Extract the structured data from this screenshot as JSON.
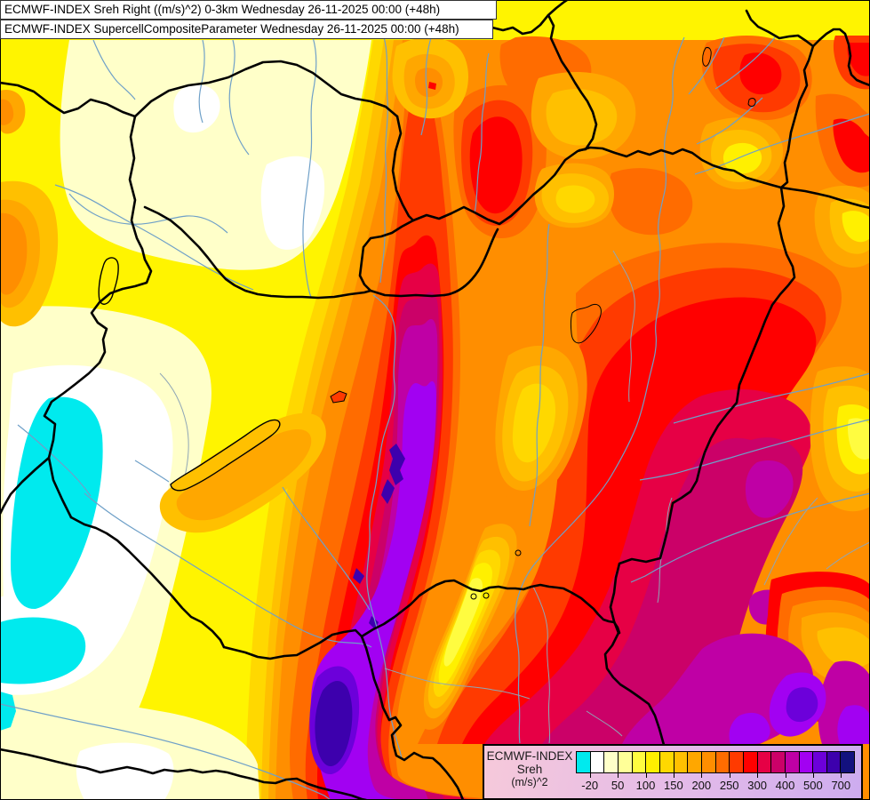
{
  "header": {
    "line1": "ECMWF-INDEX Sreh Right ((m/s)^2) 0-3km Wednesday 26-11-2025 00:00 (+48h)",
    "line2": "ECMWF-INDEX SupercellCompositeParameter Wednesday 26-11-2025 00:00 (+48h)"
  },
  "legend": {
    "title_line1": "ECMWF-INDEX",
    "title_line2": "Sreh",
    "title_line3": "(m/s)^2",
    "tick_labels": [
      "-20",
      "50",
      "100",
      "150",
      "200",
      "250",
      "300",
      "400",
      "500",
      "700"
    ],
    "colors": [
      "#00EAEE",
      "#FFFFFF",
      "#FFFFC9",
      "#FFFF98",
      "#FFFC40",
      "#FFF000",
      "#FFD800",
      "#FFC000",
      "#FFA700",
      "#FF8E00",
      "#FF6C00",
      "#FF3A00",
      "#FF0000",
      "#E60045",
      "#CB0168",
      "#BF00A5",
      "#A201F2",
      "#6C00DA",
      "#3D00AD",
      "#13117E"
    ]
  },
  "chart_data": {
    "type": "heatmap",
    "title": "ECMWF-INDEX Sreh Right ((m/s)^2) 0-3km",
    "subtitle": "ECMWF-INDEX SupercellCompositeParameter",
    "valid_time": "Wednesday 26-11-2025 00:00 (+48h)",
    "parameter": "Sreh (m/s)^2",
    "legend_levels": [
      -20,
      50,
      100,
      150,
      200,
      250,
      300,
      400,
      500,
      700
    ],
    "palette": [
      "#00EAEE",
      "#FFFFFF",
      "#FFFFC9",
      "#FFFF98",
      "#FFFC40",
      "#FFF000",
      "#FFD800",
      "#FFC000",
      "#FFA700",
      "#FF8E00",
      "#FF6C00",
      "#FF3A00",
      "#FF0000",
      "#E60045",
      "#CB0168",
      "#BF00A5",
      "#A201F2",
      "#6C00DA",
      "#3D00AD",
      "#13117E"
    ],
    "field_summary": "Negative values (cyan/white) far southwest; broad 0-150 (cream/yellow) northwest; strong N-S maximum band 400->700+ (red/magenta/violet, local indigo >700) through center; broad 250-500 (orange/red/magenta) over eastern half with violet patches in the far southeast; lighter valley (100-200) between the two maxima."
  }
}
